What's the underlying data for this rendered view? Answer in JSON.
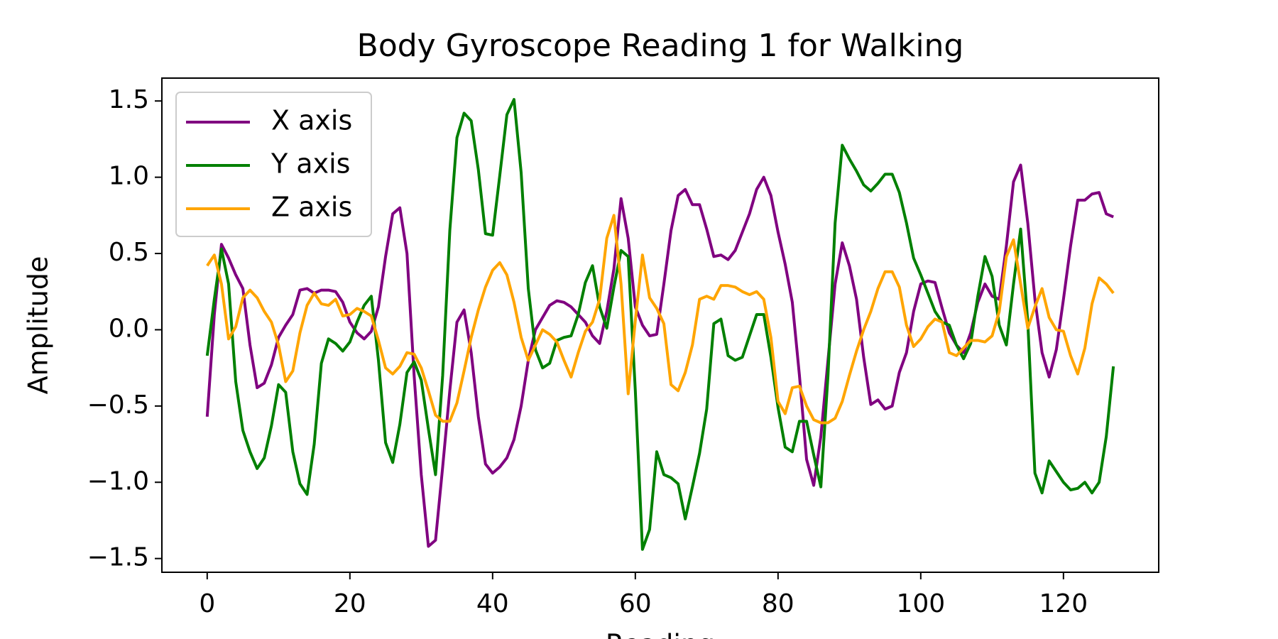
{
  "chart_data": {
    "type": "line",
    "title": "Body Gyroscope Reading 1 for Walking",
    "x_label": "Reading",
    "y_label": "Amplitude",
    "x": [
      0,
      1,
      2,
      3,
      4,
      5,
      6,
      7,
      8,
      9,
      10,
      11,
      12,
      13,
      14,
      15,
      16,
      17,
      18,
      19,
      20,
      21,
      22,
      23,
      24,
      25,
      26,
      27,
      28,
      29,
      30,
      31,
      32,
      33,
      34,
      35,
      36,
      37,
      38,
      39,
      40,
      41,
      42,
      43,
      44,
      45,
      46,
      47,
      48,
      49,
      50,
      51,
      52,
      53,
      54,
      55,
      56,
      57,
      58,
      59,
      60,
      61,
      62,
      63,
      64,
      65,
      66,
      67,
      68,
      69,
      70,
      71,
      72,
      73,
      74,
      75,
      76,
      77,
      78,
      79,
      80,
      81,
      82,
      83,
      84,
      85,
      86,
      87,
      88,
      89,
      90,
      91,
      92,
      93,
      94,
      95,
      96,
      97,
      98,
      99,
      100,
      101,
      102,
      103,
      104,
      105,
      106,
      107,
      108,
      109,
      110,
      111,
      112,
      113,
      114,
      115,
      116,
      117,
      118,
      119,
      120,
      121,
      122,
      123,
      124,
      125,
      126,
      127
    ],
    "series": [
      {
        "name": "X axis",
        "color": "#800080",
        "values": [
          -0.57,
          0.1,
          0.56,
          0.47,
          0.36,
          0.27,
          -0.1,
          -0.38,
          -0.35,
          -0.23,
          -0.05,
          0.03,
          0.1,
          0.26,
          0.27,
          0.24,
          0.26,
          0.26,
          0.25,
          0.18,
          0.05,
          -0.02,
          -0.06,
          -0.01,
          0.15,
          0.48,
          0.76,
          0.8,
          0.5,
          -0.3,
          -0.95,
          -1.42,
          -1.38,
          -0.9,
          -0.4,
          0.05,
          0.13,
          -0.15,
          -0.57,
          -0.88,
          -0.94,
          -0.9,
          -0.84,
          -0.72,
          -0.5,
          -0.2,
          0,
          0.08,
          0.16,
          0.19,
          0.18,
          0.15,
          0.1,
          0.05,
          -0.04,
          -0.09,
          0.12,
          0.4,
          0.86,
          0.6,
          0.15,
          0.03,
          -0.04,
          -0.03,
          0.3,
          0.65,
          0.88,
          0.92,
          0.82,
          0.82,
          0.66,
          0.48,
          0.49,
          0.46,
          0.52,
          0.64,
          0.76,
          0.92,
          1.0,
          0.88,
          0.64,
          0.43,
          0.18,
          -0.3,
          -0.85,
          -1.02,
          -0.7,
          -0.2,
          0.3,
          0.57,
          0.42,
          0.2,
          -0.18,
          -0.49,
          -0.46,
          -0.52,
          -0.5,
          -0.28,
          -0.15,
          0.12,
          0.3,
          0.32,
          0.31,
          0.14,
          -0.02,
          -0.1,
          -0.15,
          -0.02,
          0.18,
          0.3,
          0.22,
          0.2,
          0.55,
          0.97,
          1.08,
          0.7,
          0.2,
          -0.15,
          -0.31,
          -0.13,
          0.2,
          0.55,
          0.85,
          0.85,
          0.89,
          0.9,
          0.76,
          0.74
        ]
      },
      {
        "name": "Y axis",
        "color": "#008000",
        "values": [
          -0.17,
          0.2,
          0.53,
          0.3,
          -0.34,
          -0.66,
          -0.8,
          -0.91,
          -0.84,
          -0.63,
          -0.36,
          -0.41,
          -0.8,
          -1.01,
          -1.08,
          -0.75,
          -0.22,
          -0.06,
          -0.09,
          -0.14,
          -0.08,
          0.05,
          0.16,
          0.22,
          -0.2,
          -0.74,
          -0.87,
          -0.62,
          -0.28,
          -0.21,
          -0.33,
          -0.65,
          -0.95,
          -0.3,
          0.65,
          1.26,
          1.42,
          1.37,
          1.05,
          0.63,
          0.62,
          1.01,
          1.41,
          1.51,
          1.03,
          0.27,
          -0.13,
          -0.25,
          -0.22,
          -0.07,
          -0.05,
          -0.04,
          0.1,
          0.31,
          0.42,
          0.15,
          0.01,
          0.28,
          0.52,
          0.48,
          -0.4,
          -1.44,
          -1.31,
          -0.8,
          -0.95,
          -0.97,
          -1.01,
          -1.24,
          -1.03,
          -0.81,
          -0.52,
          0.04,
          0.07,
          -0.17,
          -0.2,
          -0.18,
          -0.04,
          0.1,
          0.1,
          -0.18,
          -0.51,
          -0.77,
          -0.8,
          -0.6,
          -0.6,
          -0.82,
          -1.03,
          -0.3,
          0.7,
          1.21,
          1.12,
          1.04,
          0.95,
          0.91,
          0.96,
          1.02,
          1.02,
          0.9,
          0.7,
          0.47,
          0.36,
          0.24,
          0.12,
          0.05,
          0.03,
          -0.1,
          -0.19,
          -0.09,
          0.22,
          0.48,
          0.35,
          0.03,
          -0.1,
          0.3,
          0.66,
          0.05,
          -0.94,
          -1.07,
          -0.86,
          -0.93,
          -1.0,
          -1.05,
          -1.04,
          -1.0,
          -1.07,
          -1.0,
          -0.7,
          -0.24
        ]
      },
      {
        "name": "Z axis",
        "color": "#ffa500",
        "values": [
          0.42,
          0.49,
          0.3,
          -0.06,
          0.02,
          0.21,
          0.26,
          0.21,
          0.12,
          0.05,
          -0.1,
          -0.34,
          -0.27,
          -0.02,
          0.16,
          0.24,
          0.17,
          0.16,
          0.2,
          0.09,
          0.1,
          0.14,
          0.12,
          0.09,
          -0.07,
          -0.25,
          -0.29,
          -0.24,
          -0.15,
          -0.16,
          -0.25,
          -0.4,
          -0.56,
          -0.6,
          -0.6,
          -0.48,
          -0.27,
          -0.05,
          0.13,
          0.28,
          0.39,
          0.44,
          0.36,
          0.18,
          -0.05,
          -0.2,
          -0.1,
          0,
          -0.03,
          -0.08,
          -0.2,
          -0.31,
          -0.15,
          -0.01,
          0.05,
          0.2,
          0.6,
          0.75,
          0.3,
          -0.42,
          0.06,
          0.49,
          0.21,
          0.14,
          0.04,
          -0.36,
          -0.4,
          -0.28,
          -0.1,
          0.2,
          0.22,
          0.2,
          0.29,
          0.29,
          0.28,
          0.25,
          0.23,
          0.25,
          0.2,
          -0.05,
          -0.47,
          -0.55,
          -0.38,
          -0.37,
          -0.5,
          -0.59,
          -0.61,
          -0.61,
          -0.58,
          -0.47,
          -0.3,
          -0.14,
          0,
          0.12,
          0.27,
          0.38,
          0.38,
          0.28,
          0.03,
          -0.11,
          -0.06,
          0.02,
          0.07,
          0.05,
          -0.15,
          -0.17,
          -0.12,
          -0.07,
          -0.07,
          -0.08,
          -0.04,
          0.12,
          0.48,
          0.59,
          0.3,
          0.01,
          0.15,
          0.27,
          0.08,
          0,
          -0.01,
          -0.17,
          -0.29,
          -0.12,
          0.17,
          0.34,
          0.3,
          0.24
        ]
      }
    ],
    "xlim": [
      -6.35,
      133.35
    ],
    "xticks": [
      0,
      20,
      40,
      60,
      80,
      100,
      120
    ],
    "ylim": [
      -1.59,
      1.65
    ],
    "yticks": [
      {
        "value": -1.5,
        "label": "−1.5"
      },
      {
        "value": -1,
        "label": "−1.0"
      },
      {
        "value": -0.5,
        "label": "−0.5"
      },
      {
        "value": 0,
        "label": "0.0"
      },
      0.5,
      {
        "value": 1,
        "label": "1.0"
      },
      1.5
    ],
    "grid": false,
    "legend": "upper left"
  }
}
